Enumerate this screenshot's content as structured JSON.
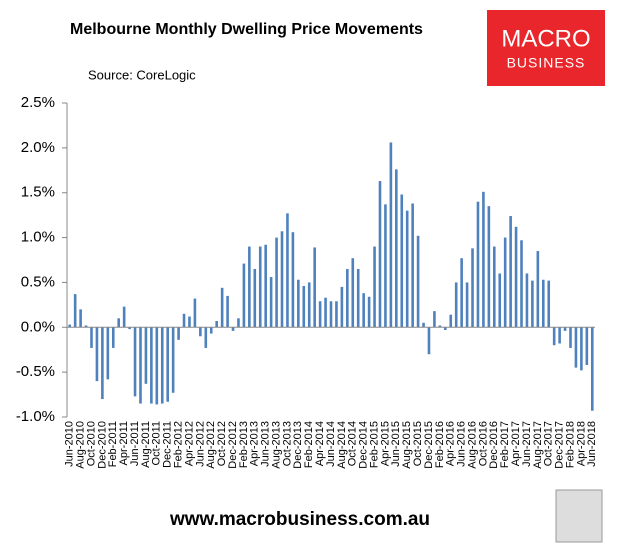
{
  "chart_data": {
    "type": "bar",
    "title": "Melbourne Monthly Dwelling Price Movements",
    "subtitle": "Source: CoreLogic",
    "logo": [
      "MACRO",
      "BUSINESS"
    ],
    "footer": "www.macrobusiness.com.au",
    "color": "#4f81bd",
    "categories": [
      "Jun-2010",
      null,
      "Aug-2010",
      null,
      "Oct-2010",
      null,
      "Dec-2010",
      null,
      "Feb-2011",
      null,
      "Apr-2011",
      null,
      "Jun-2011",
      null,
      "Aug-2011",
      null,
      "Oct-2011",
      null,
      "Dec-2011",
      null,
      "Feb-2012",
      null,
      "Apr-2012",
      null,
      "Jun-2012",
      null,
      "Aug-2012",
      null,
      "Oct-2012",
      null,
      "Dec-2012",
      null,
      "Feb-2013",
      null,
      "Apr-2013",
      null,
      "Jun-2013",
      null,
      "Aug-2013",
      null,
      "Oct-2013",
      null,
      "Dec-2013",
      null,
      "Feb-2014",
      null,
      "Apr-2014",
      null,
      "Jun-2014",
      null,
      "Aug-2014",
      null,
      "Oct-2014",
      null,
      "Dec-2014",
      null,
      "Feb-2015",
      null,
      "Apr-2015",
      null,
      "Jun-2015",
      null,
      "Aug-2015",
      null,
      "Oct-2015",
      null,
      "Dec-2015",
      null,
      "Feb-2016",
      null,
      "Apr-2016",
      null,
      "Jun-2016",
      null,
      "Aug-2016",
      null,
      "Oct-2016",
      null,
      "Dec-2016",
      null,
      "Feb-2017",
      null,
      "Apr-2017",
      null,
      "Jun-2017",
      null,
      "Aug-2017",
      null,
      "Oct-2017",
      null,
      "Dec-2017",
      null,
      "Feb-2018",
      null,
      "Apr-2018",
      null,
      "Jun-2018"
    ],
    "values": [
      0.03,
      0.37,
      0.2,
      0.02,
      -0.23,
      -0.6,
      -0.8,
      -0.58,
      -0.23,
      0.1,
      0.23,
      -0.02,
      -0.77,
      -0.85,
      -0.63,
      -0.85,
      -0.86,
      -0.85,
      -0.83,
      -0.73,
      -0.14,
      0.15,
      0.12,
      0.32,
      -0.1,
      -0.23,
      -0.07,
      0.07,
      0.44,
      0.35,
      -0.04,
      0.1,
      0.71,
      0.9,
      0.65,
      0.9,
      0.92,
      0.56,
      1.0,
      1.07,
      1.27,
      1.06,
      0.53,
      0.46,
      0.5,
      0.89,
      0.29,
      0.33,
      0.29,
      0.29,
      0.45,
      0.65,
      0.77,
      0.65,
      0.38,
      0.34,
      0.9,
      1.63,
      1.37,
      2.06,
      1.76,
      1.48,
      1.3,
      1.38,
      1.02,
      0.05,
      -0.3,
      0.18,
      0.02,
      -0.03,
      0.14,
      0.5,
      0.77,
      0.5,
      0.88,
      1.4,
      1.51,
      1.35,
      0.9,
      0.6,
      1.0,
      1.24,
      1.12,
      0.97,
      0.6,
      0.52,
      0.85,
      0.53,
      0.52,
      -0.2,
      -0.18,
      -0.04,
      -0.23,
      -0.45,
      -0.48,
      -0.42,
      -0.93
    ],
    "ylim": [
      -1.0,
      2.5
    ],
    "yticks": [
      {
        "value": -1.0,
        "label": "-1.0%"
      },
      {
        "value": -0.5,
        "label": "-0.5%"
      },
      {
        "value": 0,
        "label": "0.0%"
      },
      {
        "value": 0.5,
        "label": "0.5%"
      },
      {
        "value": 1.0,
        "label": "1.0%"
      },
      {
        "value": 1.5,
        "label": "1.5%"
      },
      {
        "value": 2.0,
        "label": "2.0%"
      },
      {
        "value": 2.5,
        "label": "2.5%"
      }
    ],
    "grid": false
  }
}
